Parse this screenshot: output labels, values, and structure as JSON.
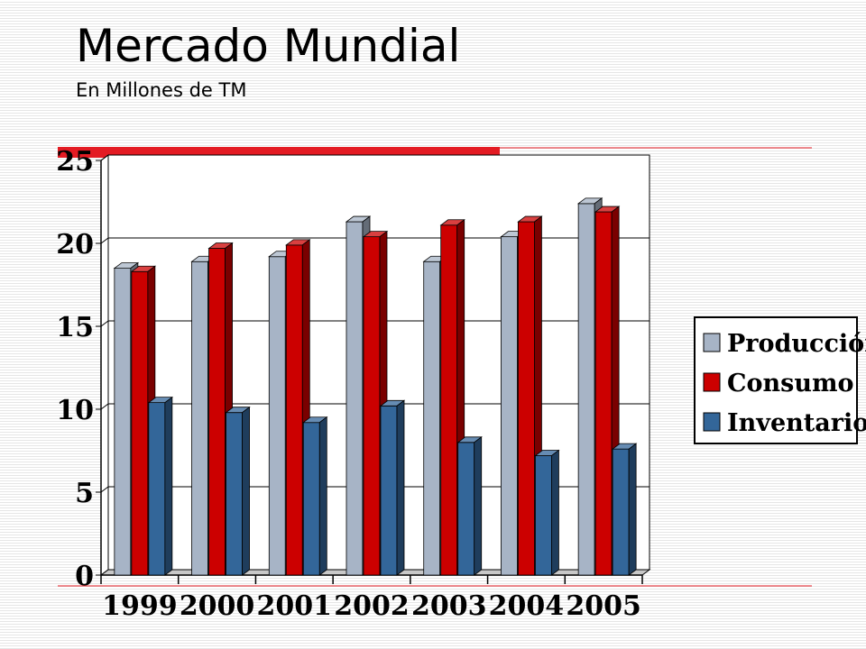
{
  "slide": {
    "title": "Mercado Mundial",
    "subtitle": "En Millones de TM"
  },
  "colors": {
    "accent_red": "#e31b23",
    "produccion": "#a7b4c6",
    "consumo": "#cc0000",
    "inventarios": "#336699"
  },
  "chart_data": {
    "type": "bar",
    "categories": [
      "1999",
      "2000",
      "2001",
      "2002",
      "2003",
      "2004",
      "2005"
    ],
    "series": [
      {
        "name": "Producción",
        "values": [
          18.5,
          18.9,
          19.2,
          21.3,
          18.9,
          20.4,
          22.4
        ]
      },
      {
        "name": "Consumo",
        "values": [
          18.3,
          19.7,
          19.9,
          20.4,
          21.1,
          21.3,
          21.9
        ]
      },
      {
        "name": "Inventarios",
        "values": [
          10.4,
          9.8,
          9.2,
          10.2,
          8.0,
          7.2,
          7.6
        ]
      }
    ],
    "yticks": [
      0,
      5,
      10,
      15,
      20,
      25
    ],
    "ylim": [
      0,
      25
    ],
    "title": "",
    "xlabel": "",
    "ylabel": "",
    "grid": true,
    "legend_position": "right"
  }
}
